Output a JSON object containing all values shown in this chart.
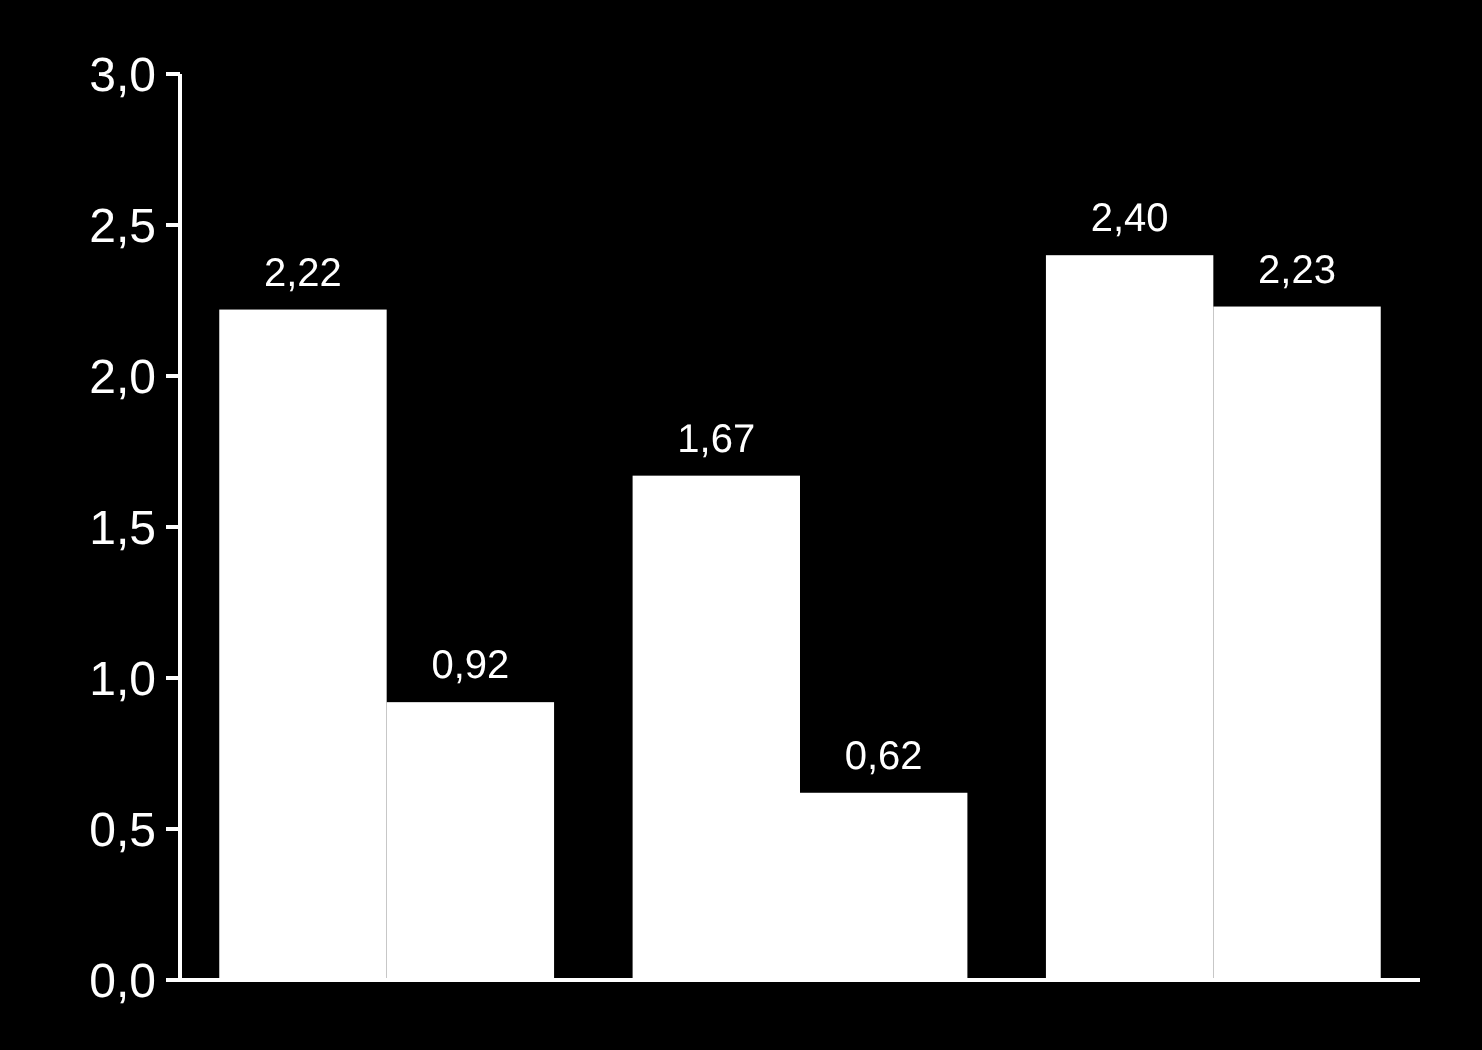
{
  "chart_data": {
    "type": "bar",
    "categories": [
      null,
      null,
      null
    ],
    "series": [
      {
        "color": "#ffffff",
        "values": [
          2.22,
          1.67,
          2.4
        ],
        "value_labels": [
          "2,22",
          "1,67",
          "2,40"
        ]
      },
      {
        "color": "#ffffff",
        "values": [
          0.92,
          0.62,
          2.23
        ],
        "value_labels": [
          "0,92",
          "0,62",
          "2,23"
        ]
      }
    ],
    "ylim": [
      0,
      3
    ],
    "yticks": [
      {
        "value": 0,
        "label": "0,0"
      },
      {
        "value": 0.5,
        "label": "0,5"
      },
      {
        "value": 1,
        "label": "1,0"
      },
      {
        "value": 1.5,
        "label": "1,5"
      },
      {
        "value": 2,
        "label": "2,0"
      },
      {
        "value": 2.5,
        "label": "2,5"
      },
      {
        "value": 3,
        "label": "3,0"
      }
    ],
    "grid": false
  }
}
